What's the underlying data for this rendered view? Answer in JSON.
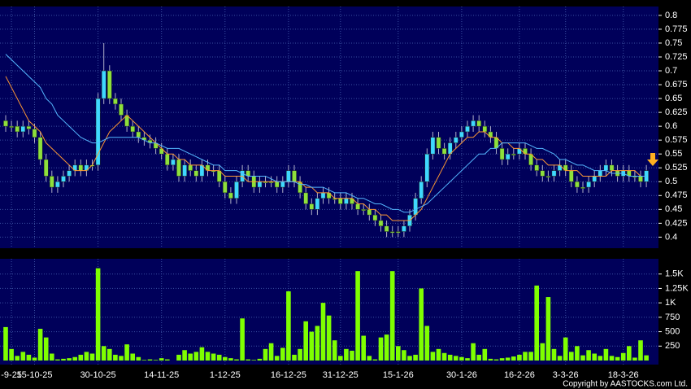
{
  "chart_data": [
    {
      "type": "candlestick",
      "categories": [
        null,
        "-9-25",
        null,
        null,
        null,
        "15-10-25",
        null,
        null,
        null,
        null,
        null,
        null,
        null,
        null,
        null,
        null,
        "30-10-25",
        null,
        null,
        null,
        null,
        null,
        null,
        null,
        null,
        null,
        null,
        "14-11-25",
        null,
        null,
        null,
        null,
        null,
        null,
        null,
        null,
        null,
        null,
        "1-12-25",
        null,
        null,
        null,
        null,
        null,
        null,
        null,
        null,
        null,
        null,
        "16-12-25",
        null,
        null,
        null,
        null,
        null,
        null,
        null,
        null,
        "31-12-25",
        null,
        null,
        null,
        null,
        null,
        null,
        null,
        null,
        null,
        "15-1-26",
        null,
        null,
        null,
        null,
        null,
        null,
        null,
        null,
        null,
        null,
        "30-1-26",
        null,
        null,
        null,
        null,
        null,
        null,
        null,
        null,
        null,
        "16-2-26",
        null,
        null,
        null,
        null,
        null,
        null,
        null,
        "3-3-26",
        null,
        null,
        null,
        null,
        null,
        null,
        null,
        null,
        null,
        "18-3-26",
        null,
        null,
        null,
        null
      ],
      "open": [
        0.61,
        0.6,
        0.6,
        0.59,
        0.6,
        0.595,
        0.58,
        0.54,
        0.51,
        0.49,
        0.5,
        0.51,
        0.52,
        0.53,
        0.52,
        0.53,
        0.53,
        0.65,
        0.7,
        0.65,
        0.64,
        0.62,
        0.6,
        0.59,
        0.58,
        0.575,
        0.57,
        0.56,
        0.55,
        0.53,
        0.54,
        0.51,
        0.53,
        0.52,
        0.51,
        0.53,
        0.52,
        0.52,
        0.5,
        0.48,
        0.47,
        0.5,
        0.52,
        0.51,
        0.49,
        0.5,
        0.5,
        0.5,
        0.49,
        0.5,
        0.52,
        0.5,
        0.48,
        0.46,
        0.45,
        0.47,
        0.48,
        0.47,
        0.47,
        0.46,
        0.47,
        0.46,
        0.45,
        0.45,
        0.44,
        0.43,
        0.42,
        0.41,
        0.41,
        0.41,
        0.42,
        0.44,
        0.47,
        0.5,
        0.55,
        0.58,
        0.56,
        0.55,
        0.57,
        0.58,
        0.59,
        0.6,
        0.61,
        0.6,
        0.59,
        0.58,
        0.56,
        0.54,
        0.55,
        0.55,
        0.56,
        0.55,
        0.53,
        0.52,
        0.51,
        0.51,
        0.52,
        0.53,
        0.52,
        0.5,
        0.49,
        0.49,
        0.5,
        0.51,
        0.52,
        0.53,
        0.52,
        0.51,
        0.52,
        0.51,
        0.51,
        0.5
      ],
      "high": [
        0.62,
        0.61,
        0.61,
        0.61,
        0.61,
        0.605,
        0.59,
        0.55,
        0.52,
        0.51,
        0.52,
        0.53,
        0.54,
        0.54,
        0.54,
        0.54,
        0.66,
        0.75,
        0.71,
        0.66,
        0.65,
        0.63,
        0.61,
        0.6,
        0.59,
        0.585,
        0.58,
        0.57,
        0.56,
        0.55,
        0.55,
        0.54,
        0.54,
        0.53,
        0.54,
        0.54,
        0.53,
        0.53,
        0.51,
        0.49,
        0.51,
        0.53,
        0.53,
        0.52,
        0.51,
        0.51,
        0.51,
        0.51,
        0.51,
        0.53,
        0.53,
        0.51,
        0.49,
        0.47,
        0.48,
        0.49,
        0.49,
        0.48,
        0.48,
        0.48,
        0.48,
        0.47,
        0.46,
        0.46,
        0.45,
        0.44,
        0.43,
        0.42,
        0.42,
        0.43,
        0.45,
        0.48,
        0.51,
        0.56,
        0.59,
        0.59,
        0.57,
        0.58,
        0.59,
        0.6,
        0.61,
        0.62,
        0.62,
        0.61,
        0.6,
        0.59,
        0.57,
        0.56,
        0.56,
        0.57,
        0.57,
        0.56,
        0.54,
        0.53,
        0.52,
        0.53,
        0.54,
        0.54,
        0.53,
        0.51,
        0.5,
        0.51,
        0.52,
        0.53,
        0.54,
        0.54,
        0.53,
        0.53,
        0.53,
        0.52,
        0.52,
        0.53
      ],
      "low": [
        0.59,
        0.59,
        0.58,
        0.58,
        0.585,
        0.57,
        0.53,
        0.5,
        0.48,
        0.48,
        0.49,
        0.5,
        0.51,
        0.51,
        0.51,
        0.52,
        0.52,
        0.64,
        0.64,
        0.63,
        0.61,
        0.59,
        0.58,
        0.57,
        0.565,
        0.56,
        0.55,
        0.54,
        0.52,
        0.52,
        0.5,
        0.5,
        0.51,
        0.5,
        0.5,
        0.51,
        0.51,
        0.49,
        0.47,
        0.46,
        0.46,
        0.49,
        0.5,
        0.48,
        0.48,
        0.49,
        0.49,
        0.48,
        0.48,
        0.49,
        0.49,
        0.47,
        0.45,
        0.44,
        0.44,
        0.46,
        0.46,
        0.46,
        0.45,
        0.45,
        0.45,
        0.44,
        0.44,
        0.43,
        0.42,
        0.41,
        0.4,
        0.4,
        0.4,
        0.4,
        0.41,
        0.43,
        0.46,
        0.49,
        0.54,
        0.55,
        0.54,
        0.54,
        0.56,
        0.57,
        0.58,
        0.59,
        0.59,
        0.58,
        0.57,
        0.55,
        0.53,
        0.53,
        0.54,
        0.54,
        0.54,
        0.52,
        0.51,
        0.5,
        0.5,
        0.5,
        0.51,
        0.51,
        0.49,
        0.48,
        0.48,
        0.48,
        0.49,
        0.5,
        0.51,
        0.51,
        0.5,
        0.5,
        0.5,
        0.5,
        0.49,
        0.49
      ],
      "close": [
        0.6,
        0.6,
        0.59,
        0.6,
        0.595,
        0.58,
        0.54,
        0.51,
        0.49,
        0.5,
        0.51,
        0.52,
        0.53,
        0.52,
        0.53,
        0.53,
        0.65,
        0.7,
        0.65,
        0.64,
        0.62,
        0.6,
        0.59,
        0.58,
        0.575,
        0.57,
        0.56,
        0.55,
        0.53,
        0.54,
        0.51,
        0.53,
        0.52,
        0.51,
        0.53,
        0.52,
        0.52,
        0.5,
        0.48,
        0.47,
        0.5,
        0.52,
        0.51,
        0.49,
        0.5,
        0.5,
        0.5,
        0.49,
        0.5,
        0.52,
        0.5,
        0.48,
        0.46,
        0.45,
        0.47,
        0.48,
        0.47,
        0.47,
        0.46,
        0.47,
        0.46,
        0.45,
        0.45,
        0.44,
        0.43,
        0.42,
        0.41,
        0.41,
        0.41,
        0.42,
        0.44,
        0.47,
        0.5,
        0.55,
        0.58,
        0.56,
        0.55,
        0.57,
        0.58,
        0.59,
        0.6,
        0.61,
        0.6,
        0.59,
        0.58,
        0.56,
        0.54,
        0.55,
        0.55,
        0.56,
        0.55,
        0.53,
        0.52,
        0.51,
        0.51,
        0.52,
        0.53,
        0.52,
        0.5,
        0.49,
        0.49,
        0.5,
        0.51,
        0.52,
        0.53,
        0.52,
        0.51,
        0.52,
        0.51,
        0.51,
        0.5,
        0.52
      ],
      "up_color": "#3fd8ff",
      "down_color": "#8ee03c",
      "series": [
        {
          "color": "#ff9933",
          "values": [
            0.69,
            0.67,
            0.65,
            0.63,
            0.61,
            0.6,
            0.59,
            0.57,
            0.56,
            0.55,
            0.54,
            0.53,
            0.52,
            0.52,
            0.52,
            0.53,
            0.55,
            0.57,
            0.59,
            0.6,
            0.61,
            0.62,
            0.61,
            0.6,
            0.59,
            0.58,
            0.57,
            0.56,
            0.55,
            0.55,
            0.54,
            0.54,
            0.53,
            0.53,
            0.53,
            0.52,
            0.52,
            0.52,
            0.51,
            0.51,
            0.51,
            0.51,
            0.5,
            0.5,
            0.5,
            0.5,
            0.5,
            0.5,
            0.5,
            0.5,
            0.5,
            0.5,
            0.49,
            0.49,
            0.48,
            0.48,
            0.48,
            0.47,
            0.47,
            0.47,
            0.47,
            0.46,
            0.46,
            0.45,
            0.45,
            0.44,
            0.44,
            0.43,
            0.43,
            0.43,
            0.43,
            0.44,
            0.45,
            0.47,
            0.49,
            0.51,
            0.53,
            0.55,
            0.56,
            0.57,
            0.58,
            0.58,
            0.59,
            0.59,
            0.58,
            0.58,
            0.57,
            0.57,
            0.56,
            0.56,
            0.55,
            0.55,
            0.54,
            0.54,
            0.53,
            0.53,
            0.53,
            0.52,
            0.52,
            0.52,
            0.51,
            0.51,
            0.51,
            0.51,
            0.51,
            0.52,
            0.52,
            0.52,
            0.52,
            0.52,
            0.51,
            0.51
          ]
        },
        {
          "color": "#55b8ff",
          "values": [
            0.73,
            0.72,
            0.71,
            0.7,
            0.69,
            0.68,
            0.67,
            0.65,
            0.64,
            0.62,
            0.61,
            0.6,
            0.59,
            0.58,
            0.575,
            0.57,
            0.57,
            0.575,
            0.58,
            0.58,
            0.58,
            0.58,
            0.58,
            0.58,
            0.575,
            0.57,
            0.57,
            0.565,
            0.56,
            0.56,
            0.56,
            0.555,
            0.55,
            0.545,
            0.54,
            0.535,
            0.53,
            0.53,
            0.52,
            0.52,
            0.52,
            0.515,
            0.51,
            0.51,
            0.51,
            0.51,
            0.505,
            0.5,
            0.5,
            0.5,
            0.5,
            0.495,
            0.495,
            0.49,
            0.49,
            0.49,
            0.485,
            0.48,
            0.48,
            0.48,
            0.475,
            0.47,
            0.47,
            0.465,
            0.46,
            0.46,
            0.455,
            0.45,
            0.45,
            0.445,
            0.445,
            0.45,
            0.455,
            0.46,
            0.47,
            0.48,
            0.49,
            0.5,
            0.51,
            0.52,
            0.53,
            0.54,
            0.55,
            0.55,
            0.56,
            0.56,
            0.57,
            0.57,
            0.57,
            0.57,
            0.57,
            0.565,
            0.56,
            0.56,
            0.555,
            0.55,
            0.54,
            0.54,
            0.535,
            0.53,
            0.53,
            0.525,
            0.52,
            0.52,
            0.52,
            0.515,
            0.515,
            0.515,
            0.51,
            0.51,
            0.51,
            0.51
          ]
        }
      ],
      "ylim": [
        0.38,
        0.816
      ],
      "yticks": [
        0.4,
        0.425,
        0.45,
        0.475,
        0.5,
        0.525,
        0.55,
        0.575,
        0.6,
        0.625,
        0.65,
        0.675,
        0.7,
        0.725,
        0.75,
        0.775,
        0.8
      ],
      "grid": true
    },
    {
      "type": "bar",
      "values": [
        580,
        200,
        80,
        150,
        100,
        50,
        550,
        400,
        120,
        20,
        30,
        40,
        60,
        100,
        150,
        120,
        1600,
        250,
        200,
        100,
        80,
        280,
        120,
        60,
        10,
        20,
        10,
        40,
        20,
        0,
        100,
        180,
        120,
        150,
        230,
        150,
        120,
        100,
        60,
        40,
        20,
        730,
        20,
        10,
        30,
        200,
        300,
        80,
        220,
        1200,
        100,
        200,
        680,
        500,
        600,
        1000,
        780,
        350,
        80,
        200,
        170,
        1550,
        430,
        80,
        20,
        400,
        450,
        1550,
        250,
        180,
        80,
        100,
        1250,
        600,
        150,
        200,
        130,
        100,
        80,
        60,
        40,
        300,
        100,
        200,
        30,
        20,
        40,
        50,
        70,
        100,
        150,
        150,
        1300,
        300,
        1100,
        200,
        80,
        400,
        150,
        250,
        90,
        180,
        120,
        80,
        200,
        80,
        60,
        130,
        250,
        50,
        350,
        90
      ],
      "color": "#7fff00",
      "ylim": [
        0,
        1750
      ],
      "yticks": [
        {
          "value": 1500,
          "label": "1.5K"
        },
        {
          "value": 1250,
          "label": "1.25K"
        },
        {
          "value": 1000,
          "label": "1K"
        },
        750,
        500,
        250
      ],
      "grid": true
    }
  ],
  "copyright": "Copyright by AASTOCKS.com Ltd."
}
